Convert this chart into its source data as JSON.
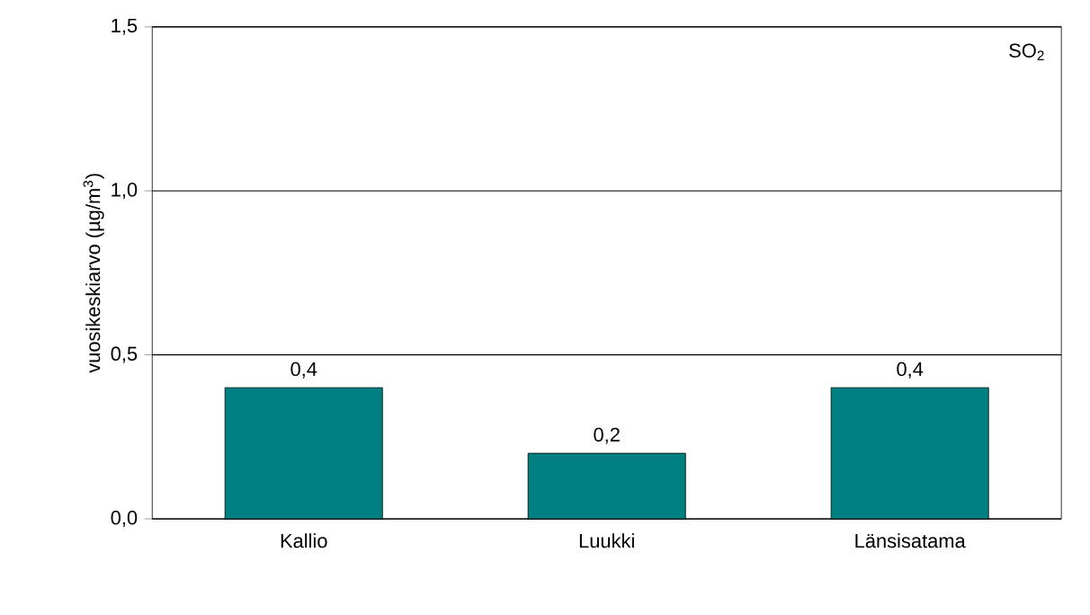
{
  "chart_data": {
    "type": "bar",
    "ylabel": "vuosikeskiarvo (µg/m$^{3}$)",
    "annotations": [
      "SO$_{2}$"
    ],
    "categories": [
      "Kallio",
      "Luukki",
      "Länsisatama"
    ],
    "values": [
      0.4,
      0.2,
      0.4
    ],
    "value_labels": [
      "0,4",
      "0,2",
      "0,4"
    ],
    "color": "#008080",
    "ylim": [
      0,
      1.5
    ],
    "yticks": [
      {
        "value": 0,
        "label": "0,0"
      },
      {
        "value": 0.5,
        "label": "0,5"
      },
      {
        "value": 1,
        "label": "1,0"
      },
      {
        "value": 1.5,
        "label": "1,5"
      }
    ],
    "grid": "y"
  }
}
